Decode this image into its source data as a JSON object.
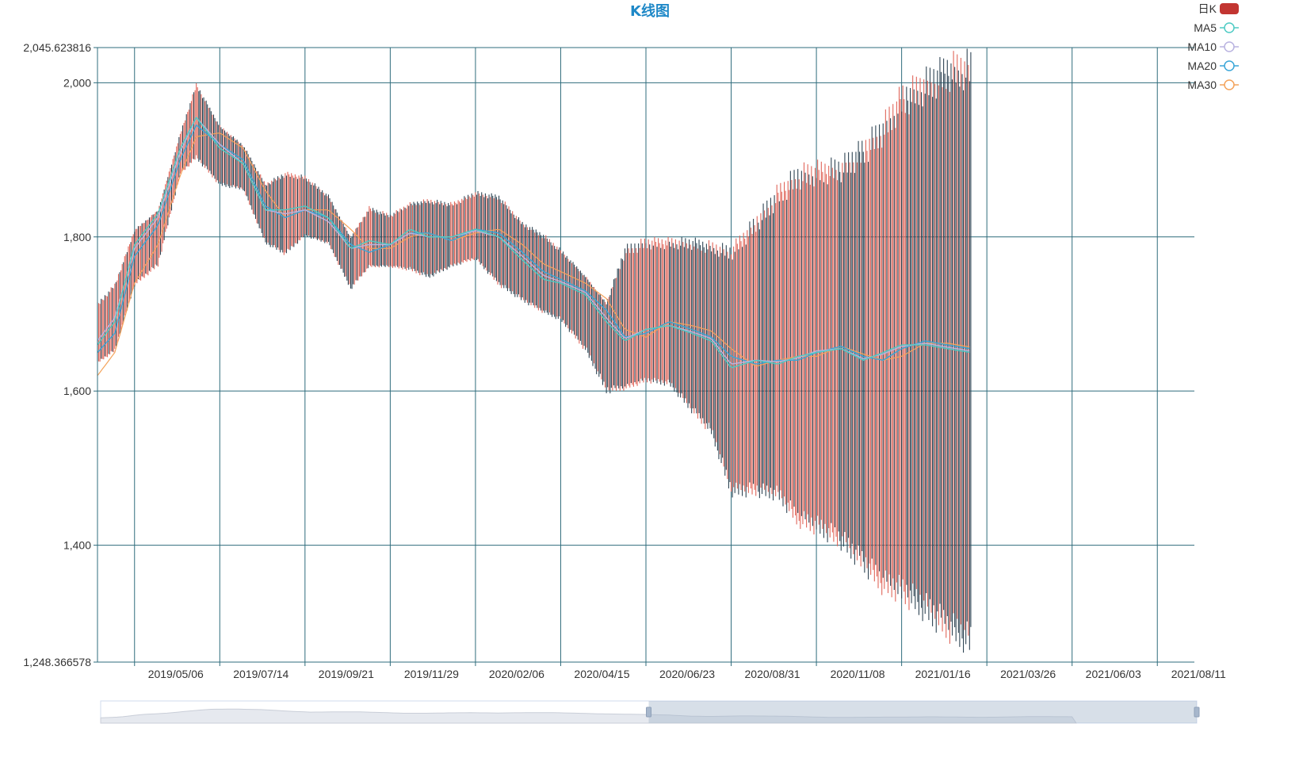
{
  "colors": {
    "up": "#e0665a",
    "down": "#2f4554",
    "grid": "#2f6c7c",
    "ma5": "#4ecbc4",
    "ma10": "#b9b3e0",
    "ma20": "#3aa6d8",
    "ma30": "#f4a35b",
    "title": "#1e88c7",
    "legend_swatch": "#c23531"
  },
  "chart_data": {
    "type": "candlestick",
    "title": "K线图",
    "legend": [
      {
        "name": "日K",
        "icon": "filled-rounded-rect"
      },
      {
        "name": "MA5",
        "icon": "line-circle"
      },
      {
        "name": "MA10",
        "icon": "line-circle"
      },
      {
        "name": "MA20",
        "icon": "line-circle"
      },
      {
        "name": "MA30",
        "icon": "line-circle"
      }
    ],
    "legend_position": "top-right",
    "ylim": [
      1248.366578,
      2045.623816
    ],
    "y_ticks": [
      1248.366578,
      1400,
      1600,
      1800,
      2000,
      2045.623816
    ],
    "y_tick_labels": [
      "1,248.366578",
      "1,400",
      "1,600",
      "1,800",
      "2,000",
      "2,045.623816"
    ],
    "x_ticks": [
      "2019/05/06",
      "2019/07/14",
      "2019/09/21",
      "2019/11/29",
      "2020/02/06",
      "2020/04/15",
      "2020/06/23",
      "2020/08/31",
      "2020/11/08",
      "2021/01/16",
      "2021/03/26",
      "2021/06/03",
      "2021/08/11"
    ],
    "x_start": "2019/04/06",
    "x_end": "2021/09/10",
    "data_end": "2021/03/13",
    "grid": true,
    "datazoom": {
      "start_fraction": 0.5,
      "end_fraction": 1.0
    },
    "envelope": {
      "dates": [
        "2019/04/06",
        "2019/04/20",
        "2019/05/06",
        "2019/05/25",
        "2019/06/12",
        "2019/06/25",
        "2019/07/14",
        "2019/08/02",
        "2019/08/20",
        "2019/09/05",
        "2019/09/21",
        "2019/10/10",
        "2019/10/28",
        "2019/11/12",
        "2019/11/29",
        "2019/12/15",
        "2019/12/30",
        "2020/01/18",
        "2020/02/06",
        "2020/02/25",
        "2020/03/15",
        "2020/04/01",
        "2020/04/15",
        "2020/05/05",
        "2020/05/22",
        "2020/06/06",
        "2020/06/23",
        "2020/07/12",
        "2020/07/30",
        "2020/08/15",
        "2020/08/31",
        "2020/09/20",
        "2020/10/08",
        "2020/10/24",
        "2020/11/08",
        "2020/11/28",
        "2020/12/16",
        "2021/01/01",
        "2021/01/16",
        "2021/02/04",
        "2021/02/22",
        "2021/03/13"
      ],
      "high": [
        1715,
        1740,
        1810,
        1835,
        1935,
        2000,
        1945,
        1920,
        1870,
        1885,
        1880,
        1855,
        1800,
        1840,
        1830,
        1845,
        1850,
        1845,
        1860,
        1855,
        1820,
        1805,
        1785,
        1750,
        1715,
        1790,
        1800,
        1800,
        1800,
        1795,
        1790,
        1830,
        1870,
        1895,
        1900,
        1905,
        1930,
        1960,
        2000,
        2020,
        2040,
        2045
      ],
      "low": [
        1635,
        1650,
        1735,
        1760,
        1880,
        1900,
        1865,
        1860,
        1790,
        1775,
        1800,
        1790,
        1730,
        1760,
        1760,
        1755,
        1745,
        1760,
        1770,
        1735,
        1715,
        1700,
        1690,
        1650,
        1595,
        1600,
        1610,
        1605,
        1570,
        1540,
        1460,
        1460,
        1455,
        1420,
        1410,
        1390,
        1360,
        1330,
        1320,
        1295,
        1270,
        1250
      ],
      "ma5": [
        1660,
        1690,
        1790,
        1830,
        1915,
        1955,
        1915,
        1895,
        1835,
        1835,
        1840,
        1825,
        1785,
        1795,
        1790,
        1810,
        1800,
        1800,
        1810,
        1800,
        1770,
        1745,
        1740,
        1725,
        1690,
        1665,
        1680,
        1685,
        1675,
        1665,
        1630,
        1640,
        1635,
        1645,
        1650,
        1655,
        1640,
        1650,
        1660,
        1660,
        1655,
        1650
      ],
      "ma10": [
        1665,
        1695,
        1785,
        1825,
        1910,
        1955,
        1920,
        1895,
        1835,
        1830,
        1835,
        1820,
        1785,
        1790,
        1790,
        1805,
        1800,
        1800,
        1808,
        1800,
        1775,
        1750,
        1742,
        1728,
        1695,
        1668,
        1680,
        1685,
        1677,
        1668,
        1635,
        1640,
        1638,
        1643,
        1652,
        1655,
        1642,
        1648,
        1658,
        1662,
        1657,
        1652
      ],
      "ma20": [
        1650,
        1675,
        1775,
        1815,
        1900,
        1945,
        1920,
        1900,
        1840,
        1825,
        1835,
        1825,
        1790,
        1780,
        1790,
        1805,
        1805,
        1795,
        1810,
        1805,
        1780,
        1755,
        1745,
        1730,
        1705,
        1670,
        1675,
        1690,
        1680,
        1670,
        1645,
        1635,
        1640,
        1640,
        1650,
        1658,
        1645,
        1640,
        1655,
        1665,
        1660,
        1655
      ],
      "ma30": [
        1620,
        1650,
        1740,
        1790,
        1880,
        1930,
        1935,
        1915,
        1860,
        1825,
        1835,
        1835,
        1810,
        1785,
        1785,
        1800,
        1805,
        1795,
        1805,
        1810,
        1790,
        1765,
        1755,
        1740,
        1720,
        1680,
        1670,
        1690,
        1685,
        1678,
        1655,
        1632,
        1640,
        1645,
        1645,
        1658,
        1648,
        1640,
        1645,
        1662,
        1662,
        1657
      ]
    }
  }
}
